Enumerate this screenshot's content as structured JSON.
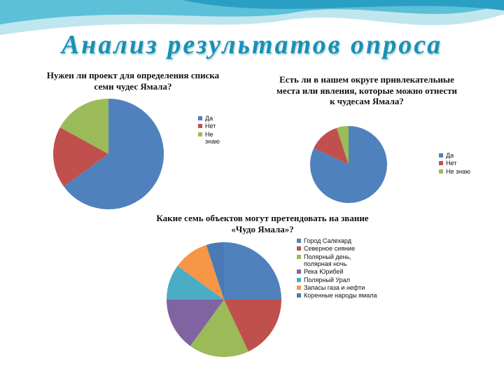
{
  "title": "Анализ результатов опроса",
  "chart_data": [
    {
      "type": "pie",
      "title": "Нужен ли проект для определения списка семи чудес Ямала?",
      "categories": [
        "Да",
        "Нет",
        "Не знаю"
      ],
      "values": [
        65,
        18,
        17
      ],
      "colors": [
        "#4f81bd",
        "#c0504d",
        "#9bbb59"
      ]
    },
    {
      "type": "pie",
      "title": "Есть ли в нашем округе привлекательные места или явления, которые можно отнести к чудесам Ямала?",
      "categories": [
        "Да",
        "Нет",
        "Не знаю"
      ],
      "values": [
        82,
        13,
        5
      ],
      "colors": [
        "#4f81bd",
        "#c0504d",
        "#9bbb59"
      ]
    },
    {
      "type": "pie",
      "title": "Какие семь объектов могут претендовать на звание «Чудо Ямала»?",
      "categories": [
        "Город Салехард",
        "Северное сияние",
        "Полярный день, полярная ночь",
        "Река Юрибей",
        "Полярный Урал",
        "Запасы газа и нефти",
        "Коренные народы ямала"
      ],
      "values": [
        25,
        18,
        17,
        15,
        10,
        10,
        5
      ],
      "colors": [
        "#4f81bd",
        "#c0504d",
        "#9bbb59",
        "#8064a2",
        "#4bacc6",
        "#f79646",
        "#4a7ab5"
      ]
    }
  ]
}
